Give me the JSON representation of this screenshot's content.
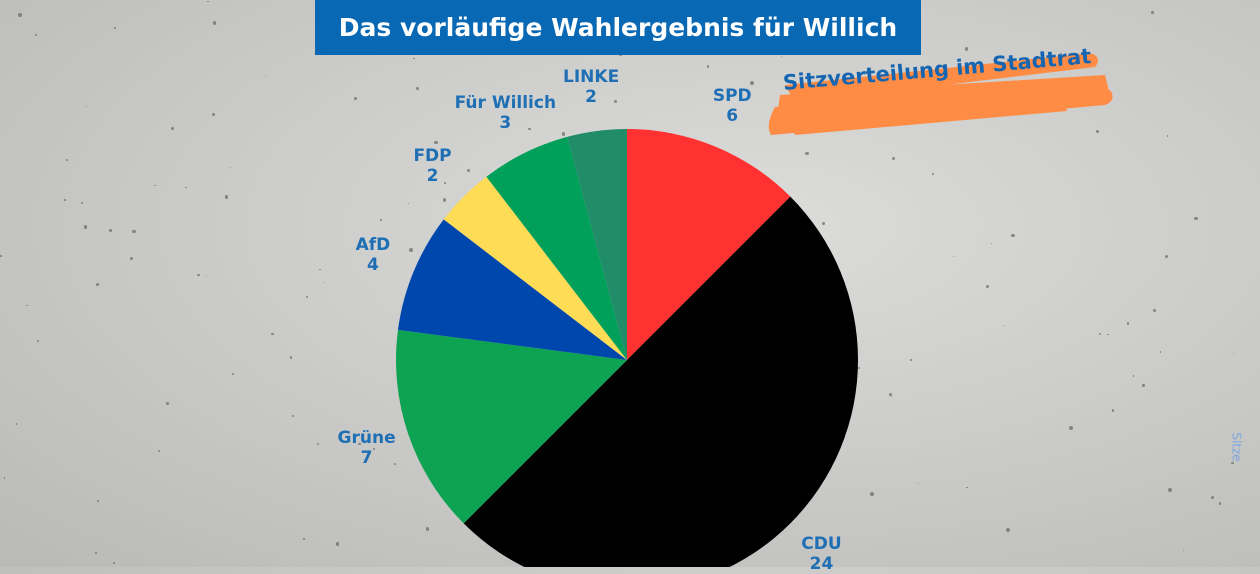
{
  "header": {
    "title": "Das vorläufige Wahlergebnis für Willich"
  },
  "subtitle": "Sitzverteilung im Stadtrat",
  "chart_data": {
    "type": "pie",
    "title": "Das vorläufige Wahlergebnis für Willich",
    "subtitle": "Sitzverteilung im Stadtrat",
    "series_name": "Sitze",
    "categories": [
      "SPD",
      "CDU",
      "Grüne",
      "AfD",
      "FDP",
      "Für Willich",
      "LINKE"
    ],
    "values": [
      6,
      24,
      7,
      4,
      2,
      3,
      2
    ],
    "colors": [
      "#ff3131",
      "#000000",
      "#0ea352",
      "#0047ad",
      "#ffdc55",
      "#00a05a",
      "#208c68"
    ],
    "label_color": "#1f6fb5",
    "start_angle": "top, clockwise"
  }
}
